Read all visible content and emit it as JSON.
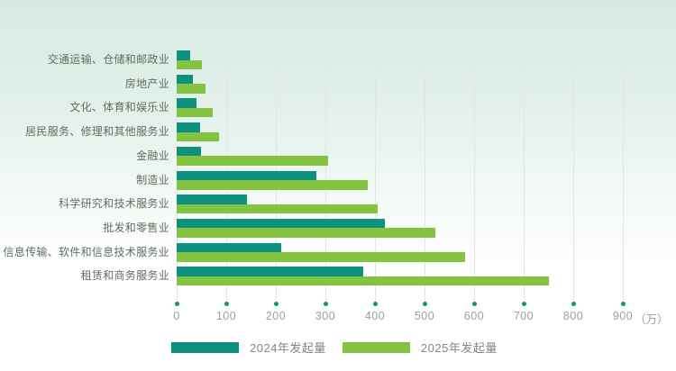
{
  "chart_data": {
    "type": "bar",
    "orientation": "horizontal",
    "title": "",
    "unit_label": "（万）",
    "categories": [
      "交通运输、仓储和邮政业",
      "房地产业",
      "文化、体育和娱乐业",
      "居民服务、修理和其他服务业",
      "金融业",
      "制造业",
      "科学研究和技术服务业",
      "批发和零售业",
      "信息传输、软件和信息技术服务业",
      "租赁和商务服务业"
    ],
    "series": [
      {
        "name": "2024年发起量",
        "color": "#0c9180",
        "values": [
          28,
          32,
          40,
          48,
          49,
          282,
          142,
          420,
          211,
          376
        ]
      },
      {
        "name": "2025年发起量",
        "color": "#83c340",
        "values": [
          51,
          59,
          73,
          85,
          306,
          385,
          405,
          521,
          581,
          751
        ]
      }
    ],
    "x_ticks": [
      0,
      100,
      200,
      300,
      400,
      500,
      600,
      700,
      800,
      900
    ],
    "xlim": [
      0,
      900
    ],
    "grid": "vertical",
    "legend_position": "bottom"
  },
  "legend": {
    "items": [
      {
        "label": "2024年发起量",
        "color": "#0c9180"
      },
      {
        "label": "2025年发起量",
        "color": "#83c340"
      }
    ]
  },
  "colors": {
    "bar_2024": "#0c9180",
    "bar_2025": "#83c340",
    "tick_dot": "#129577",
    "gridline": "#e2e6e3",
    "axis_text": "#9aa19c",
    "category_text": "#616c62",
    "background_top": "#d6e9e0"
  }
}
